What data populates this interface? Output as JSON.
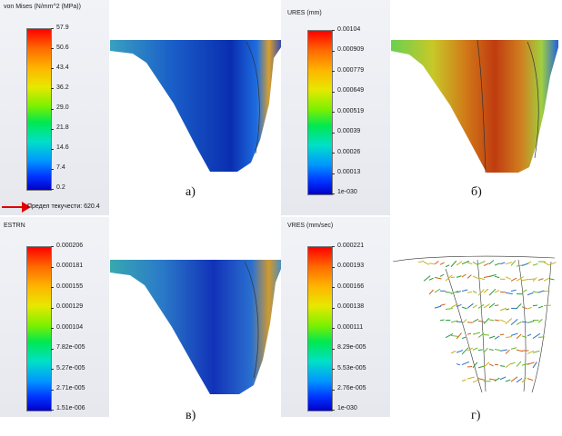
{
  "panels": [
    {
      "id": "a",
      "title": "von Mises (N/mm^2 (MPa))",
      "ticks": [
        "57.9",
        "50.6",
        "43.4",
        "36.2",
        "29.0",
        "21.8",
        "14.6",
        "7.4",
        "0.2"
      ],
      "caption": "а)"
    },
    {
      "id": "b",
      "title": "URES (mm)",
      "ticks": [
        "0.00104",
        "0.000909",
        "0.000779",
        "0.000649",
        "0.000519",
        "0.00039",
        "0.00026",
        "0.00013",
        "1e-030"
      ],
      "caption": "б)"
    },
    {
      "id": "c",
      "title": "ESTRN",
      "ticks": [
        "0.000206",
        "0.000181",
        "0.000155",
        "0.000129",
        "0.000104",
        "7.82e-005",
        "5.27e-005",
        "2.71e-005",
        "1.51e-006"
      ],
      "caption": "в)"
    },
    {
      "id": "d",
      "title": "VRES (mm/sec)",
      "ticks": [
        "0.000221",
        "0.000193",
        "0.000166",
        "0.000138",
        "0.000111",
        "8.29e-005",
        "5.53e-005",
        "2.76e-005",
        "1e-030"
      ],
      "caption": "г)"
    }
  ],
  "yield_label": "Предел текучести: 620.4",
  "colors": {
    "yield_arrow": "#e00000"
  }
}
